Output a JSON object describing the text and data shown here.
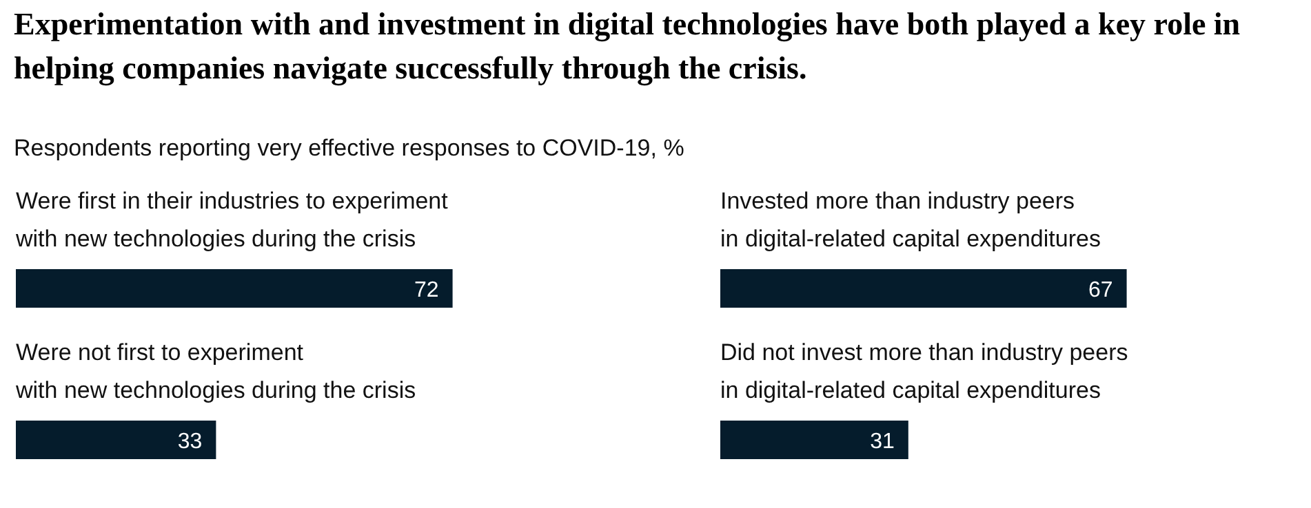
{
  "chart_data": [
    {
      "type": "bar",
      "orientation": "horizontal",
      "title": "Experimentation with and investment in digital technologies have both played a key role in helping companies navigate successfully through the crisis.",
      "subtitle": "Respondents reporting very effective responses to COVID-19, %",
      "categories": [
        "Were first in their industries to experiment\nwith new technologies during the crisis",
        "Were not first to experiment\nwith new technologies during the crisis"
      ],
      "values": [
        72,
        33
      ],
      "color": "#051c2c",
      "data_labels": true
    },
    {
      "type": "bar",
      "orientation": "horizontal",
      "categories": [
        "Invested more than industry peers\nin digital-related capital expenditures",
        "Did not invest more than industry peers\nin digital-related capital expenditures"
      ],
      "values": [
        67,
        31
      ],
      "color": "#051c2c",
      "data_labels": true
    }
  ]
}
